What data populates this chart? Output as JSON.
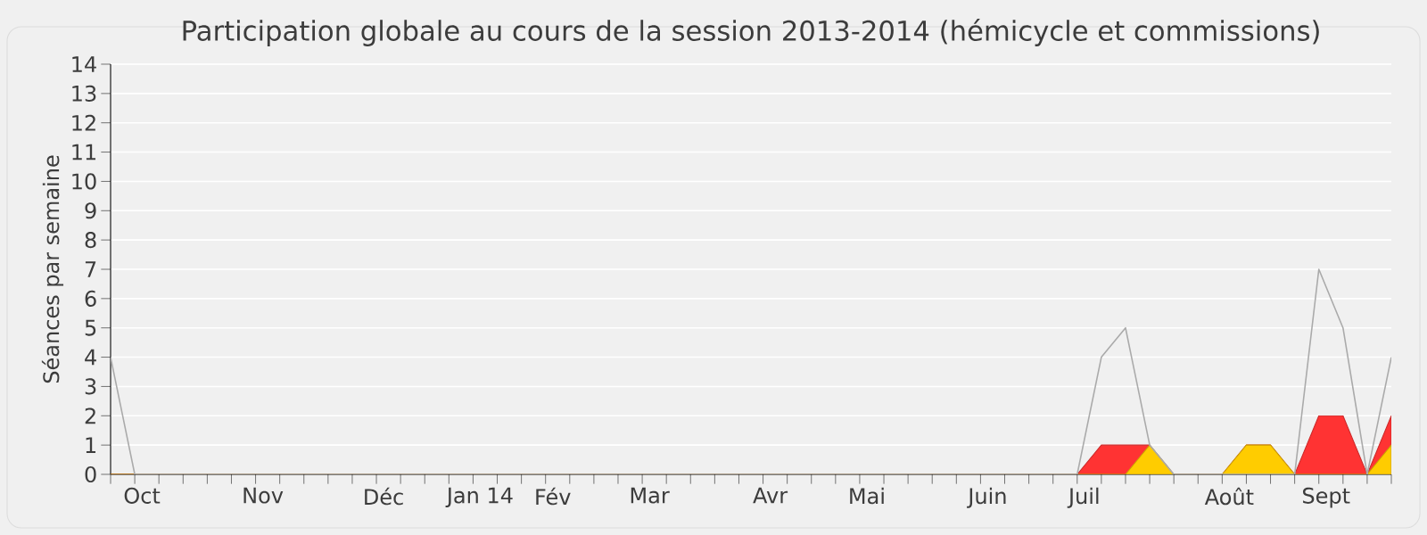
{
  "chart_data": {
    "type": "area",
    "title": "Participation globale au cours de la session 2013-2014 (hémicycle et commissions)",
    "ylabel": "Séances par semaine",
    "categories": [
      null,
      "Oct",
      null,
      null,
      null,
      null,
      "Nov",
      null,
      null,
      null,
      null,
      "Déc",
      null,
      null,
      null,
      "Jan 14",
      null,
      null,
      "Fév",
      null,
      null,
      null,
      "Mar",
      null,
      null,
      null,
      null,
      "Avr",
      null,
      null,
      null,
      "Mai",
      null,
      null,
      null,
      null,
      "Juin",
      null,
      null,
      null,
      "Juil",
      null,
      null,
      null,
      null,
      null,
      "Août",
      null,
      null,
      null,
      "Sept",
      null,
      null,
      null
    ],
    "series": [
      {
        "type": "line",
        "color": "#aaaaaa",
        "values": [
          4,
          0,
          0,
          0,
          0,
          0,
          0,
          0,
          0,
          0,
          0,
          0,
          0,
          0,
          0,
          0,
          0,
          0,
          0,
          0,
          0,
          0,
          0,
          0,
          0,
          0,
          0,
          0,
          0,
          0,
          0,
          0,
          0,
          0,
          0,
          0,
          0,
          0,
          0,
          0,
          0,
          4,
          5,
          1,
          0,
          0,
          0,
          null,
          null,
          0,
          7,
          5,
          0,
          4
        ]
      },
      {
        "color": "#ff3333",
        "values": [
          0,
          0,
          0,
          0,
          0,
          0,
          0,
          0,
          0,
          0,
          0,
          0,
          0,
          0,
          0,
          0,
          0,
          0,
          0,
          0,
          0,
          0,
          0,
          0,
          0,
          0,
          0,
          0,
          0,
          0,
          0,
          0,
          0,
          0,
          0,
          0,
          0,
          0,
          0,
          0,
          0,
          1,
          1,
          1,
          0,
          0,
          0,
          1,
          1,
          0,
          2,
          2,
          0,
          2
        ]
      },
      {
        "color": "#ffcc00",
        "values": [
          0,
          0,
          0,
          0,
          0,
          0,
          0,
          0,
          0,
          0,
          0,
          0,
          0,
          0,
          0,
          0,
          0,
          0,
          0,
          0,
          0,
          0,
          0,
          0,
          0,
          0,
          0,
          0,
          0,
          0,
          0,
          0,
          0,
          0,
          0,
          0,
          0,
          0,
          0,
          0,
          0,
          0,
          0,
          1,
          0,
          0,
          0,
          1,
          1,
          0,
          0,
          0,
          0,
          1
        ]
      }
    ],
    "ylim": [
      0,
      14
    ],
    "yticks": [
      0,
      1,
      2,
      3,
      4,
      5,
      6,
      7,
      8,
      9,
      10,
      11,
      12,
      13,
      14
    ],
    "grid": "y"
  }
}
